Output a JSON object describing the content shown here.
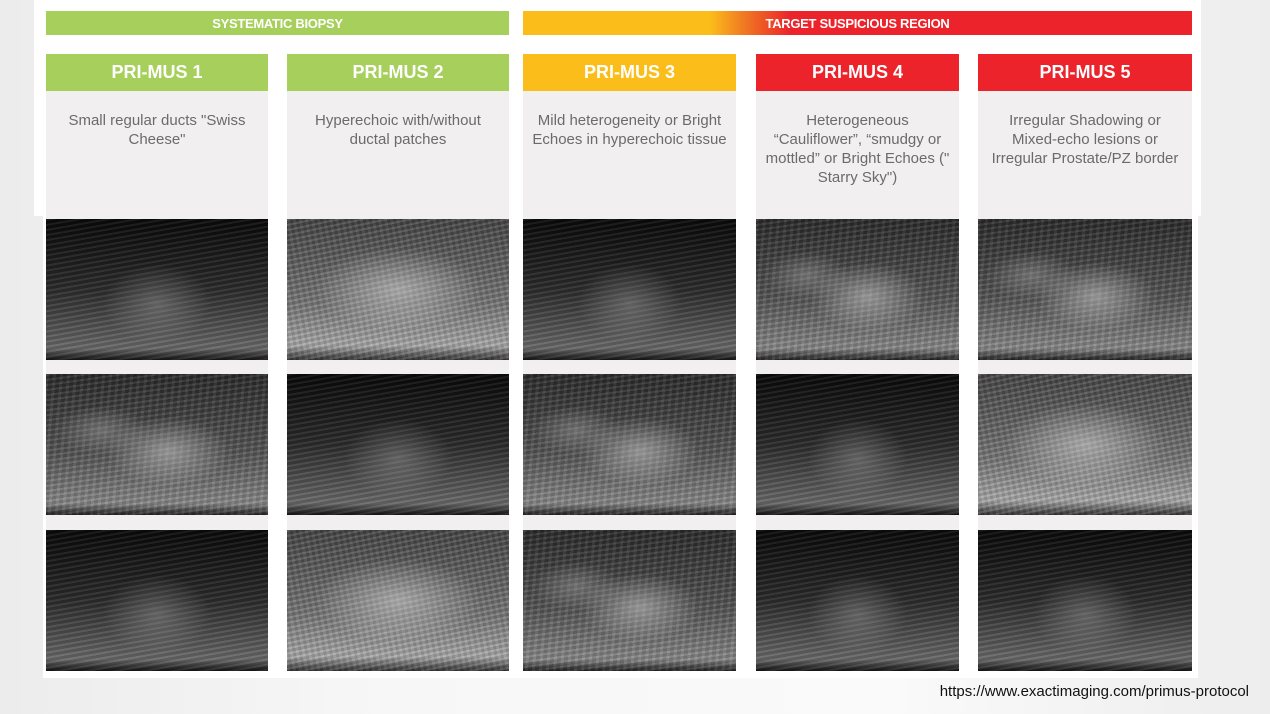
{
  "bands": {
    "systematic": "SYSTEMATIC BIOPSY",
    "target": "TARGET SUSPICIOUS REGION"
  },
  "colors": {
    "green": "#a6cf5c",
    "yellow": "#fbbd1a",
    "red": "#ec232b"
  },
  "columns": [
    {
      "title": "PRI-MUS 1",
      "color": "#a6cf5c",
      "description": "Small regular ducts \"Swiss Cheese\""
    },
    {
      "title": "PRI-MUS 2",
      "color": "#a6cf5c",
      "description": "Hyperechoic with/without ductal patches"
    },
    {
      "title": "PRI-MUS 3",
      "color": "#fbbd1a",
      "description": "Mild heterogeneity or Bright Echoes in hyperechoic tissue"
    },
    {
      "title": "PRI-MUS 4",
      "color": "#ec232b",
      "description": "Heterogeneous “Cauliflower”, “smudgy or mottled” or Bright Echoes (\" Starry Sky\")"
    },
    {
      "title": "PRI-MUS 5",
      "color": "#ec232b",
      "description": "Irregular Shadowing or Mixed-echo lesions or Irregular Prostate/PZ border"
    }
  ],
  "source_url": "https://www.exactimaging.com/primus-protocol"
}
